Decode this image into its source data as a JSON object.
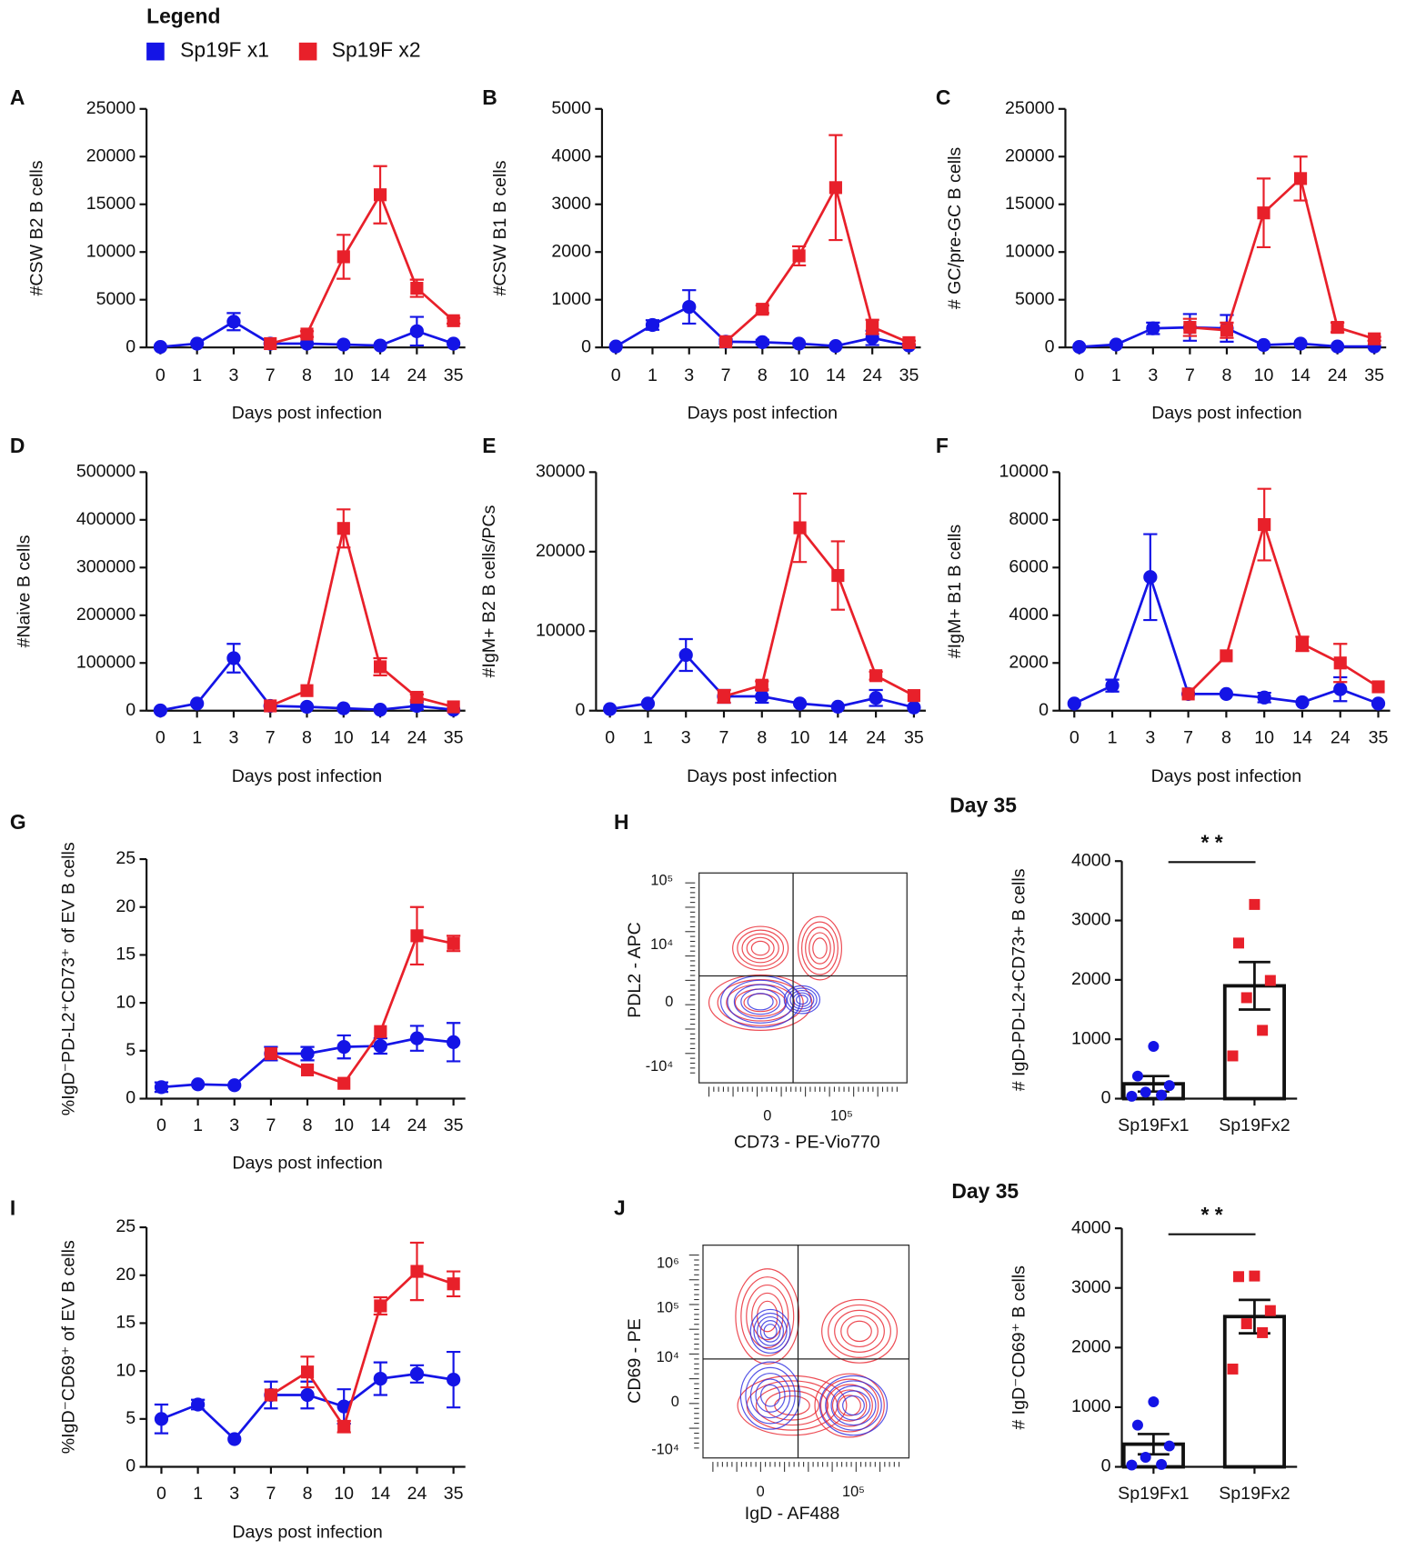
{
  "legend_title": "Legend",
  "chart_data": [
    {
      "type": "line",
      "panel": "A",
      "ylabel": "#CSW B2 B cells",
      "xlabel": "Days post infection",
      "categories": [
        "0",
        "1",
        "3",
        "7",
        "8",
        "10",
        "14",
        "24",
        "35"
      ],
      "ylim": [
        0,
        25000
      ],
      "yticks": [
        0,
        5000,
        10000,
        15000,
        20000,
        25000
      ],
      "series": [
        {
          "name": "Sp19F x1",
          "color": "#1414e6",
          "values": [
            50,
            400,
            2700,
            400,
            400,
            300,
            200,
            1700,
            400
          ],
          "errors": [
            null,
            null,
            900,
            null,
            null,
            null,
            null,
            1500,
            null
          ]
        },
        {
          "name": "Sp19F x2",
          "color": "#e8202a",
          "values": [
            null,
            null,
            null,
            400,
            1400,
            9500,
            16000,
            6200,
            2800
          ],
          "errors": [
            null,
            null,
            null,
            null,
            300,
            2300,
            3000,
            900,
            300
          ]
        }
      ]
    },
    {
      "type": "line",
      "panel": "B",
      "ylabel": "#CSW B1 B cells",
      "xlabel": "Days post infection",
      "categories": [
        "0",
        "1",
        "3",
        "7",
        "8",
        "10",
        "14",
        "24",
        "35"
      ],
      "ylim": [
        0,
        5000
      ],
      "yticks": [
        0,
        1000,
        2000,
        3000,
        4000,
        5000
      ],
      "series": [
        {
          "color": "#1414e6",
          "values": [
            20,
            470,
            850,
            120,
            110,
            80,
            30,
            200,
            40
          ],
          "errors": [
            null,
            100,
            350,
            50,
            50,
            null,
            null,
            150,
            null
          ]
        },
        {
          "color": "#e8202a",
          "values": [
            null,
            null,
            null,
            120,
            800,
            1920,
            3350,
            430,
            100
          ],
          "errors": [
            null,
            null,
            null,
            null,
            80,
            200,
            1100,
            150,
            40
          ]
        }
      ]
    },
    {
      "type": "line",
      "panel": "C",
      "ylabel": "# GC/pre-GC B cells",
      "xlabel": "Days post infection",
      "categories": [
        "0",
        "1",
        "3",
        "7",
        "8",
        "10",
        "14",
        "24",
        "35"
      ],
      "ylim": [
        0,
        25000
      ],
      "yticks": [
        0,
        5000,
        10000,
        15000,
        20000,
        25000
      ],
      "series": [
        {
          "color": "#1414e6",
          "values": [
            50,
            300,
            2000,
            2100,
            2000,
            250,
            400,
            100,
            100
          ],
          "errors": [
            null,
            null,
            600,
            1400,
            1400,
            null,
            null,
            null,
            null
          ]
        },
        {
          "color": "#e8202a",
          "values": [
            null,
            null,
            null,
            2100,
            1800,
            14100,
            17700,
            2100,
            900
          ],
          "errors": [
            null,
            null,
            null,
            900,
            800,
            3600,
            2300,
            500,
            200
          ]
        }
      ]
    },
    {
      "type": "line",
      "panel": "D",
      "ylabel": "#Naive B cells",
      "xlabel": "Days post infection",
      "categories": [
        "0",
        "1",
        "3",
        "7",
        "8",
        "10",
        "14",
        "24",
        "35"
      ],
      "ylim": [
        0,
        500000
      ],
      "yticks": [
        0,
        100000,
        200000,
        300000,
        400000,
        500000
      ],
      "series": [
        {
          "color": "#1414e6",
          "values": [
            500,
            15000,
            110000,
            10000,
            8000,
            5000,
            2000,
            10000,
            2000
          ],
          "errors": [
            null,
            null,
            30000,
            null,
            null,
            null,
            null,
            8000,
            null
          ]
        },
        {
          "color": "#e8202a",
          "values": [
            null,
            null,
            null,
            10000,
            42000,
            382000,
            92000,
            28000,
            8000
          ],
          "errors": [
            null,
            null,
            null,
            null,
            null,
            40000,
            18000,
            6000,
            null
          ]
        }
      ]
    },
    {
      "type": "line",
      "panel": "E",
      "ylabel": "#IgM+ B2 B cells/PCs",
      "xlabel": "Days post infection",
      "categories": [
        "0",
        "1",
        "3",
        "7",
        "8",
        "10",
        "14",
        "24",
        "35"
      ],
      "ylim": [
        0,
        30000
      ],
      "yticks": [
        0,
        10000,
        20000,
        30000
      ],
      "series": [
        {
          "color": "#1414e6",
          "values": [
            200,
            900,
            7000,
            1800,
            1800,
            900,
            500,
            1600,
            400
          ],
          "errors": [
            null,
            null,
            2000,
            800,
            800,
            null,
            null,
            1000,
            null
          ]
        },
        {
          "color": "#e8202a",
          "values": [
            null,
            null,
            null,
            1800,
            3200,
            23000,
            17000,
            4400,
            1900
          ],
          "errors": [
            null,
            null,
            null,
            800,
            500,
            4300,
            4300,
            500,
            null
          ]
        }
      ]
    },
    {
      "type": "line",
      "panel": "F",
      "ylabel": "#IgM+ B1 B cells",
      "xlabel": "Days post infection",
      "categories": [
        "0",
        "1",
        "3",
        "7",
        "8",
        "10",
        "14",
        "24",
        "35"
      ],
      "ylim": [
        0,
        10000
      ],
      "yticks": [
        0,
        2000,
        4000,
        6000,
        8000,
        10000
      ],
      "series": [
        {
          "color": "#1414e6",
          "values": [
            300,
            1050,
            5600,
            700,
            700,
            550,
            350,
            900,
            300
          ],
          "errors": [
            null,
            250,
            1800,
            null,
            null,
            200,
            null,
            500,
            null
          ]
        },
        {
          "color": "#e8202a",
          "values": [
            null,
            null,
            null,
            700,
            2300,
            7800,
            2800,
            2000,
            1000
          ],
          "errors": [
            null,
            null,
            null,
            null,
            null,
            1500,
            300,
            800,
            null
          ]
        }
      ]
    },
    {
      "type": "line",
      "panel": "G",
      "ylabel": "%IgD⁻PD-L2⁺CD73⁺ of EV B cells",
      "xlabel": "Days post infection",
      "categories": [
        "0",
        "1",
        "3",
        "7",
        "8",
        "10",
        "14",
        "24",
        "35"
      ],
      "ylim": [
        0,
        25
      ],
      "yticks": [
        0,
        5,
        10,
        15,
        20,
        25
      ],
      "series": [
        {
          "color": "#1414e6",
          "values": [
            1.2,
            1.5,
            1.4,
            4.7,
            4.7,
            5.4,
            5.5,
            6.3,
            5.9
          ],
          "errors": [
            0.5,
            null,
            null,
            0.7,
            0.7,
            1.2,
            0.8,
            1.3,
            2
          ]
        },
        {
          "color": "#e8202a",
          "values": [
            null,
            null,
            null,
            4.7,
            3.0,
            1.6,
            7.0,
            17,
            16.2
          ],
          "errors": [
            null,
            null,
            null,
            null,
            null,
            null,
            null,
            3,
            0.8
          ]
        }
      ]
    },
    {
      "type": "line",
      "panel": "I",
      "ylabel": "%IgD⁻CD69⁺ of EV B cells",
      "xlabel": "Days post infection",
      "categories": [
        "0",
        "1",
        "3",
        "7",
        "8",
        "10",
        "14",
        "24",
        "35"
      ],
      "ylim": [
        0,
        25
      ],
      "yticks": [
        0,
        5,
        10,
        15,
        20,
        25
      ],
      "series": [
        {
          "color": "#1414e6",
          "values": [
            5,
            6.5,
            2.9,
            7.5,
            7.5,
            6.3,
            9.2,
            9.7,
            9.1
          ],
          "errors": [
            1.5,
            0.5,
            null,
            1.4,
            1.4,
            1.8,
            1.7,
            0.9,
            2.9
          ]
        },
        {
          "color": "#e8202a",
          "values": [
            null,
            null,
            null,
            7.5,
            9.9,
            4.2,
            16.8,
            20.4,
            19.1
          ],
          "errors": [
            null,
            null,
            null,
            null,
            1.6,
            0.6,
            0.9,
            3,
            1.3
          ]
        }
      ]
    },
    {
      "type": "bar",
      "title": "Day 35",
      "ylabel": "# IgD-PD-L2+CD73+ B cells",
      "categories": [
        "Sp19Fx1",
        "Sp19Fx2"
      ],
      "colors": [
        "#1414e6",
        "#e8202a"
      ],
      "values": [
        250,
        1900
      ],
      "errors": [
        130,
        400
      ],
      "points": [
        [
          880,
          380,
          220,
          110,
          60,
          40
        ],
        [
          3270,
          2620,
          1990,
          1700,
          1150,
          720
        ]
      ],
      "significance": "* *",
      "ylim": [
        0,
        4000
      ],
      "yticks": [
        0,
        1000,
        2000,
        3000,
        4000
      ]
    },
    {
      "type": "bar",
      "title": "Day 35",
      "ylabel": "# IgD⁻CD69⁺ B cells",
      "categories": [
        "Sp19Fx1",
        "Sp19Fx2"
      ],
      "colors": [
        "#1414e6",
        "#e8202a"
      ],
      "values": [
        380,
        2520
      ],
      "errors": [
        170,
        280
      ],
      "points": [
        [
          1090,
          700,
          350,
          160,
          40,
          30
        ],
        [
          3200,
          3190,
          2620,
          2400,
          2250,
          1640
        ]
      ],
      "significance": "* *",
      "ylim": [
        0,
        4000
      ],
      "yticks": [
        0,
        1000,
        2000,
        3000,
        4000
      ]
    }
  ],
  "flow": [
    {
      "panel": "H",
      "ylabel": "PDL2 - APC",
      "xlabel": "CD73 - PE-Vio770",
      "yticks": [
        "10⁵",
        "10⁴",
        "0",
        "-10⁴"
      ],
      "xticks": [
        "0",
        "10⁵"
      ]
    },
    {
      "panel": "J",
      "ylabel": "CD69 - PE",
      "xlabel": "IgD - AF488",
      "yticks": [
        "10⁶",
        "10⁵",
        "10⁴",
        "0",
        "-10⁴"
      ],
      "xticks": [
        "0",
        "10⁵"
      ]
    }
  ]
}
